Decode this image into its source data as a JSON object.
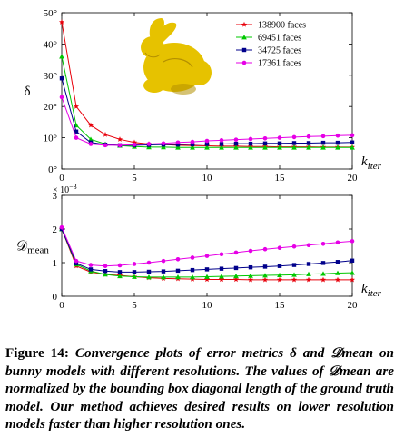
{
  "chart_data": [
    {
      "type": "line",
      "ylabel": "δ",
      "xlabel": "k",
      "xlabel_sub": "iter",
      "xlim": [
        0,
        20
      ],
      "ylim": [
        0,
        50
      ],
      "x_ticks": [
        0,
        5,
        10,
        15,
        20
      ],
      "y_ticks": [
        0,
        10,
        20,
        30,
        40,
        50
      ],
      "y_tick_suffix": "°",
      "legend_position": "top-right",
      "inset_image": "bunny-model",
      "x": [
        0,
        1,
        2,
        3,
        4,
        5,
        6,
        7,
        8,
        9,
        10,
        11,
        12,
        13,
        14,
        15,
        16,
        17,
        18,
        19,
        20
      ],
      "series": [
        {
          "name": "138900 faces",
          "color": "#e8000b",
          "marker": "star",
          "values": [
            47,
            20,
            14,
            11,
            9.5,
            8.5,
            8,
            7.8,
            7.6,
            7.5,
            7.4,
            7.3,
            7.3,
            7.2,
            7.2,
            7.1,
            7.1,
            7.1,
            7,
            7,
            7
          ]
        },
        {
          "name": "69451 faces",
          "color": "#00c800",
          "marker": "triangle",
          "values": [
            36,
            14,
            9.5,
            8,
            7.5,
            7.2,
            7,
            7,
            6.9,
            6.9,
            6.9,
            6.9,
            6.9,
            6.9,
            6.9,
            6.9,
            6.9,
            6.9,
            6.9,
            6.9,
            6.9
          ]
        },
        {
          "name": "34725 faces",
          "color": "#00008b",
          "marker": "square",
          "values": [
            29,
            12,
            8.5,
            7.8,
            7.6,
            7.6,
            7.7,
            7.8,
            7.8,
            7.9,
            8,
            8,
            8.1,
            8.1,
            8.2,
            8.2,
            8.3,
            8.3,
            8.4,
            8.4,
            8.5
          ]
        },
        {
          "name": "17361 faces",
          "color": "#e600e6",
          "marker": "circle",
          "values": [
            23,
            10,
            8,
            7.6,
            7.6,
            7.8,
            8,
            8.2,
            8.5,
            8.7,
            9,
            9.2,
            9.4,
            9.6,
            9.8,
            10,
            10.2,
            10.4,
            10.5,
            10.7,
            10.8
          ]
        }
      ]
    },
    {
      "type": "line",
      "ylabel": "𝒟",
      "ylabel_sub": "mean",
      "xlabel": "k",
      "xlabel_sub": "iter",
      "xlim": [
        0,
        20
      ],
      "ylim": [
        0,
        3
      ],
      "x_ticks": [
        0,
        5,
        10,
        15,
        20
      ],
      "y_ticks": [
        0,
        1,
        2,
        3
      ],
      "y_scale_label": "× 10",
      "y_scale_exp": "−3",
      "x": [
        0,
        1,
        2,
        3,
        4,
        5,
        6,
        7,
        8,
        9,
        10,
        11,
        12,
        13,
        14,
        15,
        16,
        17,
        18,
        19,
        20
      ],
      "series": [
        {
          "name": "138900 faces",
          "color": "#e8000b",
          "marker": "star",
          "values": [
            2.0,
            0.9,
            0.72,
            0.65,
            0.62,
            0.58,
            0.55,
            0.53,
            0.52,
            0.51,
            0.5,
            0.5,
            0.5,
            0.49,
            0.49,
            0.49,
            0.49,
            0.49,
            0.49,
            0.49,
            0.49
          ]
        },
        {
          "name": "69451 faces",
          "color": "#00c800",
          "marker": "triangle",
          "values": [
            2.0,
            0.95,
            0.75,
            0.65,
            0.6,
            0.58,
            0.57,
            0.57,
            0.57,
            0.57,
            0.58,
            0.59,
            0.6,
            0.61,
            0.62,
            0.63,
            0.64,
            0.66,
            0.67,
            0.69,
            0.7
          ]
        },
        {
          "name": "34725 faces",
          "color": "#00008b",
          "marker": "square",
          "values": [
            2.0,
            0.98,
            0.8,
            0.75,
            0.72,
            0.72,
            0.73,
            0.74,
            0.76,
            0.78,
            0.8,
            0.82,
            0.84,
            0.86,
            0.88,
            0.9,
            0.93,
            0.96,
            0.99,
            1.02,
            1.06
          ]
        },
        {
          "name": "17361 faces",
          "color": "#e600e6",
          "marker": "circle",
          "values": [
            2.05,
            1.05,
            0.93,
            0.9,
            0.92,
            0.96,
            1.0,
            1.05,
            1.1,
            1.15,
            1.2,
            1.25,
            1.3,
            1.35,
            1.4,
            1.44,
            1.48,
            1.52,
            1.56,
            1.6,
            1.64
          ]
        }
      ]
    }
  ],
  "caption": {
    "label": "Figure 14:",
    "text": "Convergence plots of error metrics δ and 𝒟mean on bunny models with different resolutions. The values of 𝒟mean are normalized by the bounding box diagonal length of the ground truth model. Our method achieves desired results on lower resolution models faster than higher resolution ones."
  }
}
